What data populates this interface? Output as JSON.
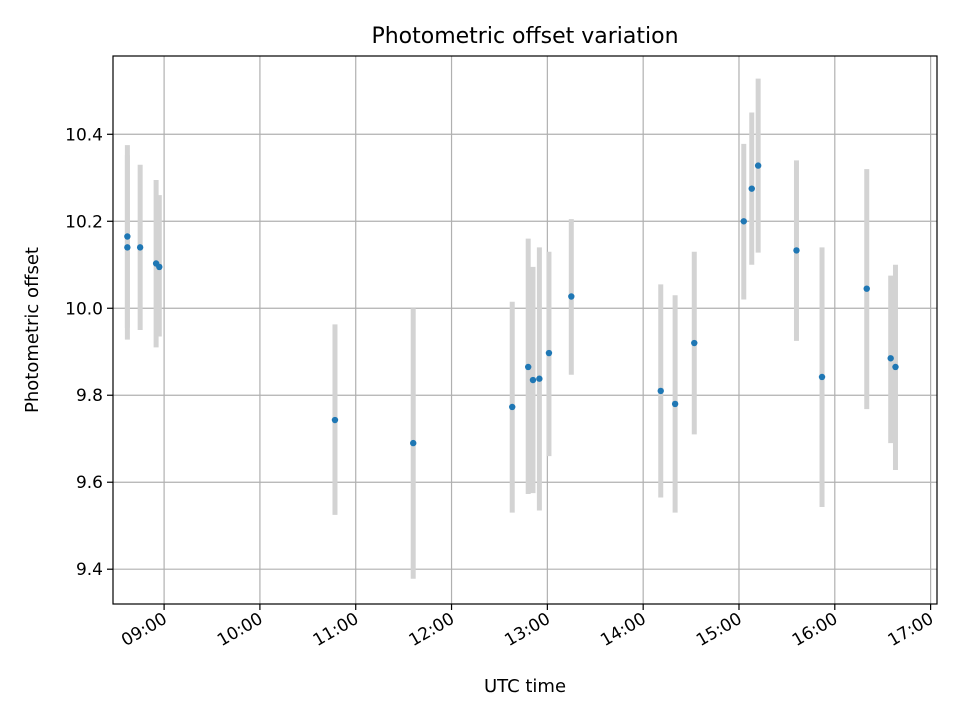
{
  "chart_data": {
    "type": "scatter",
    "title": "Photometric offset variation",
    "xlabel": "UTC time",
    "ylabel": "Photometric offset",
    "xlim": [
      "08:28",
      "17:04"
    ],
    "ylim": [
      9.32,
      10.58
    ],
    "grid": true,
    "x_ticks": [
      "09:00",
      "10:00",
      "11:00",
      "12:00",
      "13:00",
      "14:00",
      "15:00",
      "16:00",
      "17:00"
    ],
    "y_ticks": [
      9.4,
      9.6,
      9.8,
      10.0,
      10.2,
      10.4
    ],
    "point_color": "#1f77b4",
    "errorbar_color": "#d3d3d3",
    "series": [
      {
        "points": [
          {
            "x": "08:37",
            "y": 10.165,
            "y_low": 9.955,
            "y_high": 10.375
          },
          {
            "x": "08:37",
            "y": 10.14,
            "y_low": 9.928,
            "y_high": 10.352
          },
          {
            "x": "08:45",
            "y": 10.14,
            "y_low": 9.95,
            "y_high": 10.33
          },
          {
            "x": "08:55",
            "y": 10.103,
            "y_low": 9.91,
            "y_high": 10.295
          },
          {
            "x": "08:57",
            "y": 10.095,
            "y_low": 9.935,
            "y_high": 10.26
          },
          {
            "x": "10:47",
            "y": 9.743,
            "y_low": 9.525,
            "y_high": 9.963
          },
          {
            "x": "11:36",
            "y": 9.69,
            "y_low": 9.378,
            "y_high": 10.0
          },
          {
            "x": "12:38",
            "y": 9.773,
            "y_low": 9.53,
            "y_high": 10.015
          },
          {
            "x": "12:48",
            "y": 9.865,
            "y_low": 9.573,
            "y_high": 10.16
          },
          {
            "x": "12:51",
            "y": 9.835,
            "y_low": 9.575,
            "y_high": 10.095
          },
          {
            "x": "12:55",
            "y": 9.838,
            "y_low": 9.535,
            "y_high": 10.14
          },
          {
            "x": "13:01",
            "y": 9.897,
            "y_low": 9.66,
            "y_high": 10.13
          },
          {
            "x": "13:15",
            "y": 10.027,
            "y_low": 9.847,
            "y_high": 10.205
          },
          {
            "x": "14:11",
            "y": 9.81,
            "y_low": 9.565,
            "y_high": 10.055
          },
          {
            "x": "14:20",
            "y": 9.78,
            "y_low": 9.53,
            "y_high": 10.03
          },
          {
            "x": "14:32",
            "y": 9.92,
            "y_low": 9.71,
            "y_high": 10.13
          },
          {
            "x": "15:03",
            "y": 10.2,
            "y_low": 10.02,
            "y_high": 10.378
          },
          {
            "x": "15:08",
            "y": 10.275,
            "y_low": 10.1,
            "y_high": 10.45
          },
          {
            "x": "15:12",
            "y": 10.328,
            "y_low": 10.128,
            "y_high": 10.528
          },
          {
            "x": "15:36",
            "y": 10.133,
            "y_low": 9.925,
            "y_high": 10.34
          },
          {
            "x": "15:52",
            "y": 9.842,
            "y_low": 9.543,
            "y_high": 10.14
          },
          {
            "x": "16:20",
            "y": 10.045,
            "y_low": 9.768,
            "y_high": 10.32
          },
          {
            "x": "16:35",
            "y": 9.885,
            "y_low": 9.69,
            "y_high": 10.075
          },
          {
            "x": "16:38",
            "y": 9.865,
            "y_low": 9.628,
            "y_high": 10.1
          }
        ]
      }
    ]
  }
}
